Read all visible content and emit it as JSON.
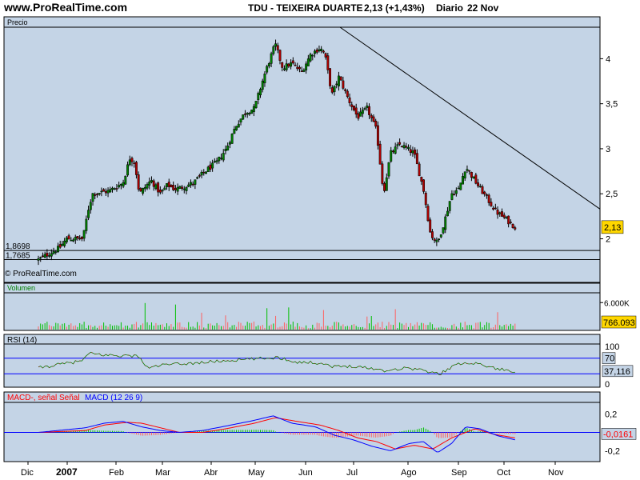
{
  "header": {
    "site": "www.ProRealTime.com",
    "ticker": "TDU - TEIXEIRA DUARTE",
    "quote": "2,13 (+1,43%)",
    "period": "Diario",
    "date": "22 Nov"
  },
  "colors": {
    "panel_bg": "#c4d4e6",
    "up": "#008000",
    "down": "#b00000",
    "trendline": "#000000",
    "rsi_line": "#000000",
    "macd": "#0000ff",
    "signal": "#ff0000",
    "price_badge": "#ffd700",
    "volume_up": "#00c000",
    "volume_down": "#ff6060"
  },
  "chart_data": [
    {
      "type": "candlestick",
      "title": "Precio",
      "watermark": "© ProRealTime.com",
      "xlabel_months": [
        "Dic",
        "2007",
        "Feb",
        "Mar",
        "Abr",
        "May",
        "Jun",
        "Jul",
        "Ago",
        "Sep",
        "Oct",
        "Nov"
      ],
      "yticks": [
        "4",
        "3,5",
        "3",
        "2,5",
        "2"
      ],
      "ylim": [
        1.72,
        4.35
      ],
      "last_price_label": "2,13",
      "level_labels": [
        "1,8698",
        "1,7685"
      ],
      "levels": [
        1.8698,
        1.7685
      ],
      "trendline": {
        "from": {
          "month": "Jul",
          "price": 4.35
        },
        "to": {
          "month": "Nov end",
          "price": 2.33
        }
      },
      "close_series": [
        {
          "t": 0.0,
          "v": 1.77
        },
        {
          "t": 0.45,
          "v": 1.9
        },
        {
          "t": 0.6,
          "v": 2.0
        },
        {
          "t": 0.95,
          "v": 2.0
        },
        {
          "t": 1.05,
          "v": 2.3
        },
        {
          "t": 1.15,
          "v": 2.5
        },
        {
          "t": 1.5,
          "v": 2.53
        },
        {
          "t": 1.8,
          "v": 2.62
        },
        {
          "t": 1.95,
          "v": 2.9
        },
        {
          "t": 2.05,
          "v": 2.85
        },
        {
          "t": 2.15,
          "v": 2.5
        },
        {
          "t": 2.4,
          "v": 2.65
        },
        {
          "t": 2.6,
          "v": 2.5
        },
        {
          "t": 2.75,
          "v": 2.6
        },
        {
          "t": 2.9,
          "v": 2.55
        },
        {
          "t": 3.1,
          "v": 2.58
        },
        {
          "t": 3.3,
          "v": 2.62
        },
        {
          "t": 3.55,
          "v": 2.75
        },
        {
          "t": 3.8,
          "v": 2.85
        },
        {
          "t": 4.0,
          "v": 3.0
        },
        {
          "t": 4.2,
          "v": 3.25
        },
        {
          "t": 4.4,
          "v": 3.4
        },
        {
          "t": 4.6,
          "v": 3.45
        },
        {
          "t": 4.8,
          "v": 3.8
        },
        {
          "t": 5.0,
          "v": 4.1
        },
        {
          "t": 5.05,
          "v": 4.15
        },
        {
          "t": 5.2,
          "v": 3.9
        },
        {
          "t": 5.4,
          "v": 3.95
        },
        {
          "t": 5.6,
          "v": 3.85
        },
        {
          "t": 5.8,
          "v": 4.05
        },
        {
          "t": 6.0,
          "v": 4.12
        },
        {
          "t": 6.1,
          "v": 4.05
        },
        {
          "t": 6.25,
          "v": 3.6
        },
        {
          "t": 6.4,
          "v": 3.8
        },
        {
          "t": 6.6,
          "v": 3.55
        },
        {
          "t": 6.8,
          "v": 3.35
        },
        {
          "t": 7.0,
          "v": 3.45
        },
        {
          "t": 7.2,
          "v": 3.2
        },
        {
          "t": 7.35,
          "v": 2.5
        },
        {
          "t": 7.5,
          "v": 2.95
        },
        {
          "t": 7.7,
          "v": 3.05
        },
        {
          "t": 7.85,
          "v": 3.0
        },
        {
          "t": 8.0,
          "v": 2.95
        },
        {
          "t": 8.2,
          "v": 2.55
        },
        {
          "t": 8.35,
          "v": 2.05
        },
        {
          "t": 8.5,
          "v": 1.95
        },
        {
          "t": 8.65,
          "v": 2.2
        },
        {
          "t": 8.8,
          "v": 2.5
        },
        {
          "t": 8.95,
          "v": 2.55
        },
        {
          "t": 9.1,
          "v": 2.8
        },
        {
          "t": 9.2,
          "v": 2.72
        },
        {
          "t": 9.35,
          "v": 2.6
        },
        {
          "t": 9.55,
          "v": 2.45
        },
        {
          "t": 9.75,
          "v": 2.3
        },
        {
          "t": 9.95,
          "v": 2.22
        },
        {
          "t": 10.15,
          "v": 2.13
        }
      ]
    },
    {
      "type": "bar",
      "title": "Volumen",
      "yticks": [
        "6.000K"
      ],
      "ylim": [
        0,
        8000
      ],
      "last_value_label": "766.093"
    },
    {
      "type": "line",
      "title": "RSI (14)",
      "yticks": [
        "100",
        "0"
      ],
      "ylim": [
        0,
        100
      ],
      "levels": [
        70,
        30
      ],
      "level_labels": [
        "70",
        "37,116"
      ],
      "last_value": 37.116,
      "series": [
        {
          "values": [
            {
              "t": 0.0,
              "v": 45
            },
            {
              "t": 0.5,
              "v": 55
            },
            {
              "t": 0.9,
              "v": 62
            },
            {
              "t": 1.1,
              "v": 82
            },
            {
              "t": 1.4,
              "v": 78
            },
            {
              "t": 1.9,
              "v": 76
            },
            {
              "t": 2.15,
              "v": 75
            },
            {
              "t": 2.3,
              "v": 45
            },
            {
              "t": 2.6,
              "v": 52
            },
            {
              "t": 3.0,
              "v": 55
            },
            {
              "t": 3.4,
              "v": 58
            },
            {
              "t": 3.8,
              "v": 62
            },
            {
              "t": 4.2,
              "v": 65
            },
            {
              "t": 4.6,
              "v": 68
            },
            {
              "t": 4.9,
              "v": 70
            },
            {
              "t": 5.1,
              "v": 72
            },
            {
              "t": 5.5,
              "v": 60
            },
            {
              "t": 6.0,
              "v": 58
            },
            {
              "t": 6.3,
              "v": 48
            },
            {
              "t": 6.7,
              "v": 50
            },
            {
              "t": 7.1,
              "v": 44
            },
            {
              "t": 7.4,
              "v": 38
            },
            {
              "t": 7.8,
              "v": 45
            },
            {
              "t": 8.1,
              "v": 42
            },
            {
              "t": 8.4,
              "v": 32
            },
            {
              "t": 8.55,
              "v": 30
            },
            {
              "t": 8.8,
              "v": 48
            },
            {
              "t": 9.1,
              "v": 60
            },
            {
              "t": 9.4,
              "v": 55
            },
            {
              "t": 9.7,
              "v": 45
            },
            {
              "t": 9.9,
              "v": 40
            },
            {
              "t": 10.15,
              "v": 37.116
            }
          ]
        }
      ]
    },
    {
      "type": "line",
      "title": "MACD-, señal Señal",
      "title2": "MACD (12 26 9)",
      "yticks": [
        "0,2",
        "-0,2"
      ],
      "ylim": [
        -0.3,
        0.3
      ],
      "value_labels": [
        "-0,0161"
      ],
      "series": [
        {
          "name": "MACD-, señal Señal",
          "values": [
            {
              "t": 0.0,
              "v": 0.0
            },
            {
              "t": 1.0,
              "v": 0.02
            },
            {
              "t": 1.4,
              "v": 0.08
            },
            {
              "t": 1.9,
              "v": 0.11
            },
            {
              "t": 2.2,
              "v": 0.1
            },
            {
              "t": 2.6,
              "v": 0.05
            },
            {
              "t": 3.0,
              "v": 0.0
            },
            {
              "t": 3.5,
              "v": 0.0
            },
            {
              "t": 4.0,
              "v": 0.04
            },
            {
              "t": 4.6,
              "v": 0.1
            },
            {
              "t": 5.05,
              "v": 0.16
            },
            {
              "t": 5.5,
              "v": 0.12
            },
            {
              "t": 6.0,
              "v": 0.08
            },
            {
              "t": 6.4,
              "v": 0.02
            },
            {
              "t": 6.8,
              "v": -0.06
            },
            {
              "t": 7.2,
              "v": -0.1
            },
            {
              "t": 7.6,
              "v": -0.18
            },
            {
              "t": 8.0,
              "v": -0.14
            },
            {
              "t": 8.4,
              "v": -0.18
            },
            {
              "t": 8.8,
              "v": -0.06
            },
            {
              "t": 9.3,
              "v": 0.04
            },
            {
              "t": 9.7,
              "v": -0.02
            },
            {
              "t": 10.15,
              "v": -0.06
            }
          ]
        },
        {
          "name": "MACD (12 26 9)",
          "values": [
            {
              "t": 0.0,
              "v": 0.0
            },
            {
              "t": 1.0,
              "v": 0.05
            },
            {
              "t": 1.4,
              "v": 0.1
            },
            {
              "t": 1.8,
              "v": 0.12
            },
            {
              "t": 2.2,
              "v": 0.06
            },
            {
              "t": 2.6,
              "v": 0.02
            },
            {
              "t": 3.0,
              "v": 0.0
            },
            {
              "t": 3.5,
              "v": 0.02
            },
            {
              "t": 4.0,
              "v": 0.07
            },
            {
              "t": 4.5,
              "v": 0.12
            },
            {
              "t": 5.0,
              "v": 0.18
            },
            {
              "t": 5.4,
              "v": 0.1
            },
            {
              "t": 5.9,
              "v": 0.06
            },
            {
              "t": 6.3,
              "v": -0.03
            },
            {
              "t": 6.7,
              "v": -0.08
            },
            {
              "t": 7.1,
              "v": -0.15
            },
            {
              "t": 7.5,
              "v": -0.2
            },
            {
              "t": 7.9,
              "v": -0.12
            },
            {
              "t": 8.2,
              "v": -0.1
            },
            {
              "t": 8.5,
              "v": -0.22
            },
            {
              "t": 8.8,
              "v": -0.12
            },
            {
              "t": 9.1,
              "v": 0.06
            },
            {
              "t": 9.4,
              "v": 0.04
            },
            {
              "t": 9.8,
              "v": -0.04
            },
            {
              "t": 10.15,
              "v": -0.08
            }
          ]
        }
      ]
    }
  ]
}
